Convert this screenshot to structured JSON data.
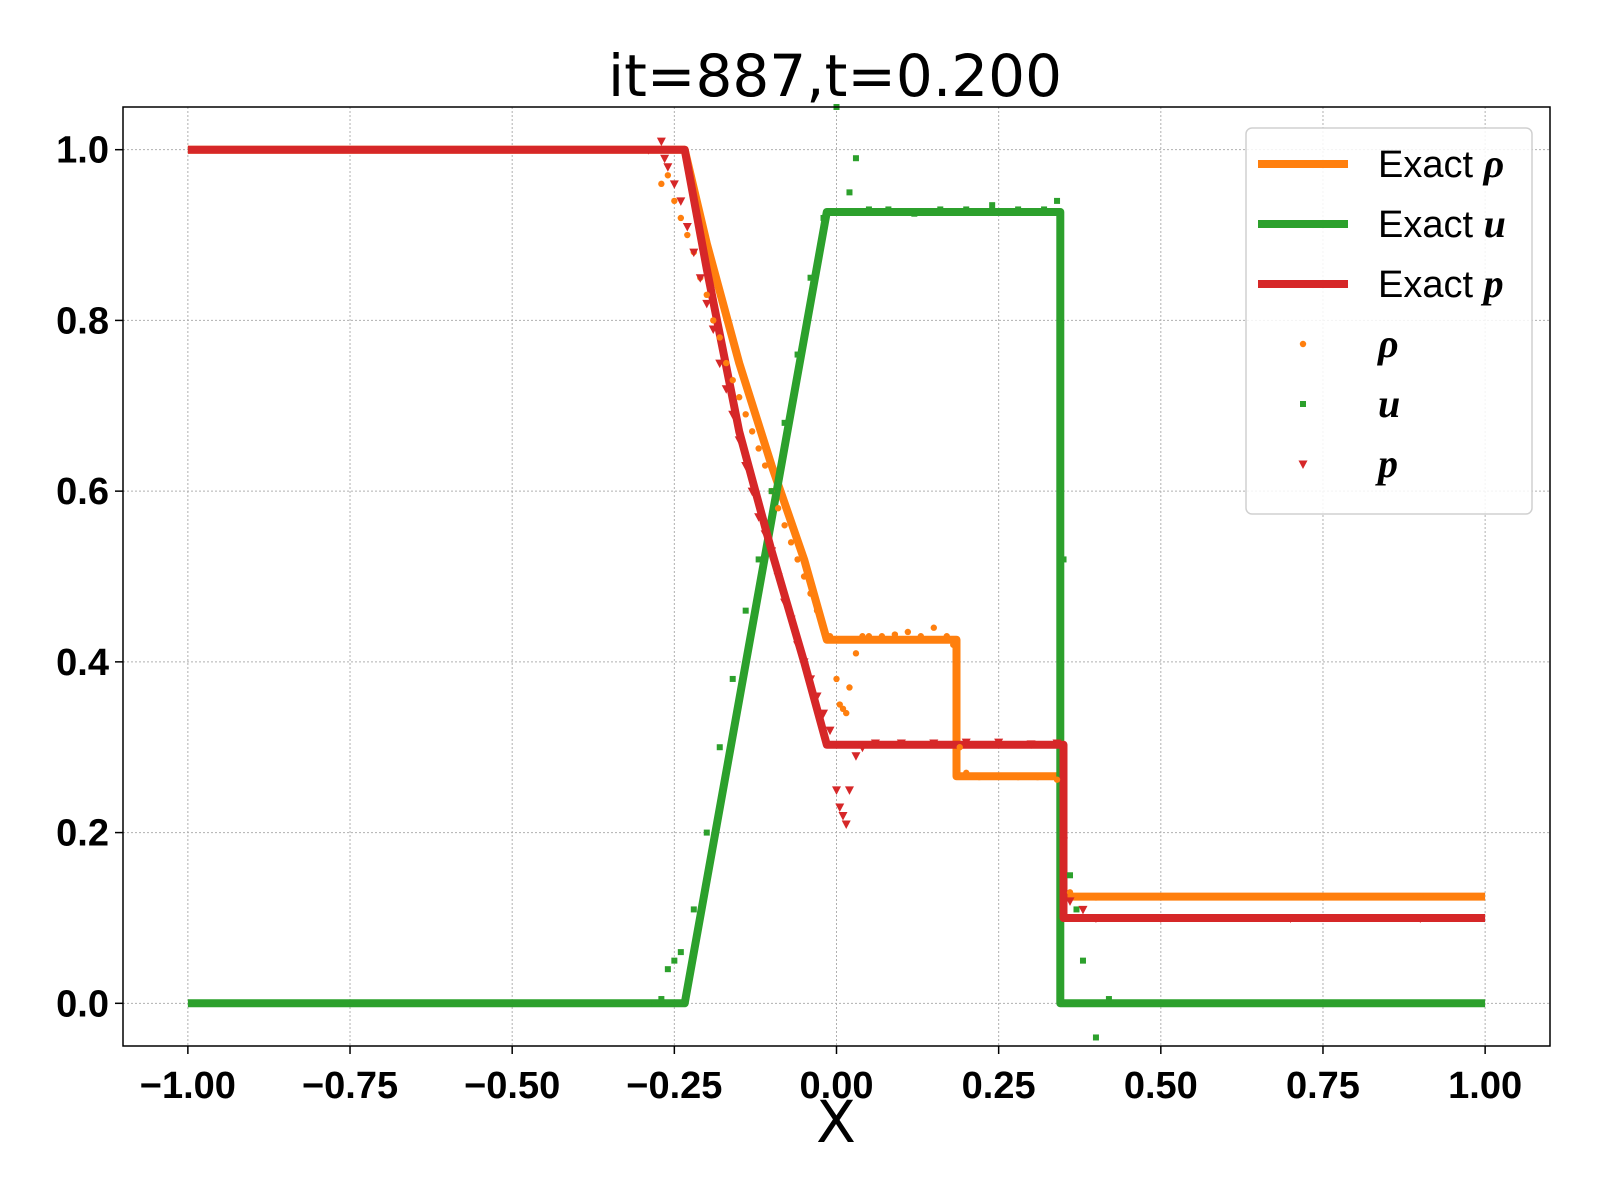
{
  "chart_data": {
    "type": "line",
    "title": "it=887,t=0.200",
    "xlabel": "X",
    "ylabel": "",
    "xlim": [
      -1.1,
      1.1
    ],
    "ylim": [
      -0.05,
      1.05
    ],
    "xticks": [
      -1.0,
      -0.75,
      -0.5,
      -0.25,
      0.0,
      0.25,
      0.5,
      0.75,
      1.0
    ],
    "xtick_labels": [
      "−1.00",
      "−0.75",
      "−0.50",
      "−0.25",
      "0.00",
      "0.25",
      "0.50",
      "0.75",
      "1.00"
    ],
    "yticks": [
      0.0,
      0.2,
      0.4,
      0.6,
      0.8,
      1.0
    ],
    "ytick_labels": [
      "0.0",
      "0.2",
      "0.4",
      "0.6",
      "0.8",
      "1.0"
    ],
    "grid": true,
    "legend_position": "top-right",
    "series": [
      {
        "name": "Exact",
        "symbol": "ρ",
        "kind": "line",
        "color": "#ff7f0e",
        "x": [
          -1.0,
          -0.234,
          -0.2,
          -0.15,
          -0.1,
          -0.05,
          -0.015,
          0.185,
          0.185,
          0.35,
          0.35,
          1.0
        ],
        "y": [
          1.0,
          1.0,
          0.89,
          0.75,
          0.63,
          0.52,
          0.426,
          0.426,
          0.266,
          0.266,
          0.125,
          0.125
        ]
      },
      {
        "name": "Exact",
        "symbol": "u",
        "kind": "line",
        "color": "#2ca02c",
        "x": [
          -1.0,
          -0.234,
          -0.015,
          0.345,
          0.345,
          1.0
        ],
        "y": [
          0.0,
          0.0,
          0.927,
          0.927,
          0.0,
          0.0
        ]
      },
      {
        "name": "Exact",
        "symbol": "p",
        "kind": "line",
        "color": "#d62728",
        "x": [
          -1.0,
          -0.234,
          -0.2,
          -0.15,
          -0.1,
          -0.05,
          -0.015,
          0.35,
          0.35,
          1.0
        ],
        "y": [
          1.0,
          1.0,
          0.86,
          0.67,
          0.53,
          0.4,
          0.303,
          0.303,
          0.1,
          0.1
        ]
      },
      {
        "name": "",
        "symbol": "ρ",
        "kind": "scatter",
        "marker": "circle",
        "color": "#ff7f0e",
        "x": [
          -0.27,
          -0.26,
          -0.25,
          -0.24,
          -0.23,
          -0.22,
          -0.21,
          -0.2,
          -0.19,
          -0.18,
          -0.17,
          -0.16,
          -0.15,
          -0.14,
          -0.13,
          -0.12,
          -0.11,
          -0.1,
          -0.09,
          -0.08,
          -0.07,
          -0.06,
          -0.05,
          -0.04,
          -0.03,
          -0.02,
          -0.01,
          0.0,
          0.005,
          0.01,
          0.015,
          0.02,
          0.03,
          0.04,
          0.05,
          0.07,
          0.09,
          0.11,
          0.13,
          0.15,
          0.17,
          0.18,
          0.19,
          0.2,
          0.22,
          0.25,
          0.28,
          0.31,
          0.34,
          0.36,
          0.4,
          0.5,
          0.6,
          0.7,
          0.8,
          0.9
        ],
        "y": [
          0.96,
          0.97,
          0.94,
          0.92,
          0.9,
          0.88,
          0.85,
          0.83,
          0.8,
          0.78,
          0.75,
          0.73,
          0.71,
          0.69,
          0.67,
          0.65,
          0.63,
          0.6,
          0.58,
          0.56,
          0.54,
          0.52,
          0.5,
          0.48,
          0.46,
          0.44,
          0.43,
          0.38,
          0.35,
          0.345,
          0.34,
          0.37,
          0.41,
          0.43,
          0.43,
          0.43,
          0.432,
          0.435,
          0.43,
          0.44,
          0.43,
          0.42,
          0.3,
          0.27,
          0.265,
          0.266,
          0.265,
          0.265,
          0.262,
          0.13,
          0.124,
          0.125,
          0.125,
          0.125,
          0.125,
          0.125
        ]
      },
      {
        "name": "",
        "symbol": "u",
        "kind": "scatter",
        "marker": "square",
        "color": "#2ca02c",
        "x": [
          -0.29,
          -0.28,
          -0.27,
          -0.26,
          -0.25,
          -0.24,
          -0.22,
          -0.2,
          -0.18,
          -0.16,
          -0.14,
          -0.12,
          -0.1,
          -0.08,
          -0.06,
          -0.04,
          -0.02,
          0.0,
          0.02,
          0.03,
          0.05,
          0.08,
          0.12,
          0.16,
          0.2,
          0.24,
          0.28,
          0.32,
          0.34,
          0.35,
          0.36,
          0.37,
          0.38,
          0.39,
          0.4,
          0.42,
          0.5,
          0.7,
          0.9
        ],
        "y": [
          0.0,
          0.0,
          0.005,
          0.04,
          0.05,
          0.06,
          0.11,
          0.2,
          0.3,
          0.38,
          0.46,
          0.52,
          0.6,
          0.68,
          0.76,
          0.85,
          0.92,
          1.05,
          0.95,
          0.99,
          0.93,
          0.93,
          0.925,
          0.93,
          0.93,
          0.935,
          0.93,
          0.93,
          0.94,
          0.52,
          0.15,
          0.11,
          0.05,
          0.0,
          -0.04,
          0.005,
          0.0,
          0.0,
          0.0
        ]
      },
      {
        "name": "",
        "symbol": "p",
        "kind": "scatter",
        "marker": "triangle-down",
        "color": "#d62728",
        "x": [
          -0.29,
          -0.27,
          -0.265,
          -0.26,
          -0.25,
          -0.24,
          -0.23,
          -0.22,
          -0.21,
          -0.2,
          -0.19,
          -0.18,
          -0.17,
          -0.16,
          -0.15,
          -0.14,
          -0.13,
          -0.12,
          -0.11,
          -0.1,
          -0.09,
          -0.08,
          -0.07,
          -0.06,
          -0.05,
          -0.04,
          -0.03,
          -0.02,
          -0.01,
          0.0,
          0.005,
          0.01,
          0.015,
          0.02,
          0.03,
          0.04,
          0.06,
          0.1,
          0.15,
          0.2,
          0.25,
          0.3,
          0.34,
          0.35,
          0.36,
          0.38,
          0.4,
          0.5,
          0.7,
          0.9
        ],
        "y": [
          1.0,
          1.01,
          0.99,
          0.98,
          0.96,
          0.94,
          0.91,
          0.88,
          0.85,
          0.82,
          0.79,
          0.75,
          0.72,
          0.69,
          0.66,
          0.63,
          0.6,
          0.57,
          0.55,
          0.53,
          0.5,
          0.47,
          0.45,
          0.42,
          0.4,
          0.38,
          0.36,
          0.34,
          0.32,
          0.25,
          0.23,
          0.22,
          0.21,
          0.25,
          0.29,
          0.3,
          0.305,
          0.305,
          0.305,
          0.306,
          0.306,
          0.304,
          0.305,
          0.19,
          0.12,
          0.11,
          0.1,
          0.1,
          0.1,
          0.1
        ]
      }
    ]
  }
}
